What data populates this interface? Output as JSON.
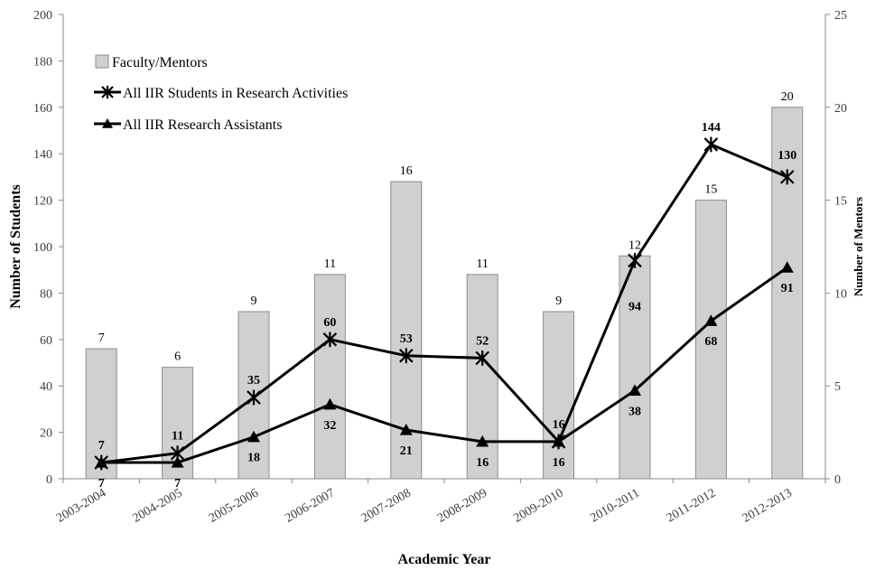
{
  "chart_data": {
    "type": "bar",
    "categories": [
      "2003-2004",
      "2004-2005",
      "2005-2006",
      "2006-2007",
      "2007-2008",
      "2008-2009",
      "2009-2010",
      "2010-2011",
      "2011-2012",
      "2012-2013"
    ],
    "xlabel": "Academic Year",
    "ylabel": "Number of Students",
    "y2label": "Number of Mentors",
    "ylim": [
      0,
      200
    ],
    "y2lim": [
      0,
      25
    ],
    "yticks": [
      0,
      20,
      40,
      60,
      80,
      100,
      120,
      140,
      160,
      180,
      200
    ],
    "y2ticks": [
      0,
      5,
      10,
      15,
      20,
      25
    ],
    "grid": false,
    "legend_position": "top-left",
    "series": [
      {
        "name": "Faculty/Mentors",
        "type": "bar",
        "axis": "right",
        "values": [
          7,
          6,
          9,
          11,
          16,
          11,
          9,
          12,
          15,
          20
        ],
        "color": "#d0d0d0"
      },
      {
        "name": "All IIR Students in Research Activities",
        "type": "line",
        "marker": "asterisk",
        "axis": "left",
        "values": [
          7,
          11,
          35,
          60,
          53,
          52,
          16,
          94,
          144,
          130
        ],
        "color": "#000000"
      },
      {
        "name": "All IIR Research Assistants",
        "type": "line",
        "marker": "triangle",
        "axis": "left",
        "values": [
          7,
          7,
          18,
          32,
          21,
          16,
          16,
          38,
          68,
          91
        ],
        "color": "#000000"
      }
    ]
  }
}
